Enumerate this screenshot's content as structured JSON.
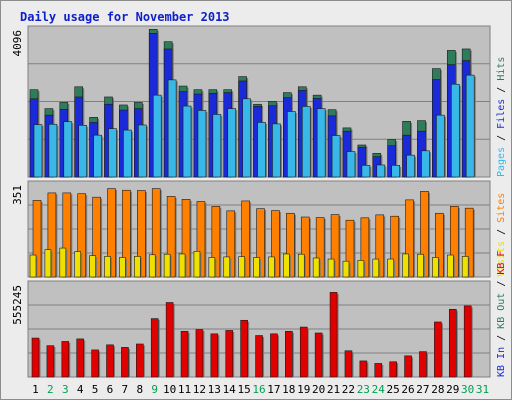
{
  "chart_data": {
    "type": "bar",
    "title": "Daily usage for November 2013",
    "categories": [
      "1",
      "2",
      "3",
      "4",
      "5",
      "6",
      "7",
      "8",
      "9",
      "10",
      "11",
      "12",
      "13",
      "14",
      "15",
      "16",
      "17",
      "18",
      "19",
      "20",
      "21",
      "22",
      "23",
      "24",
      "25",
      "26",
      "27",
      "28",
      "29",
      "30",
      "31"
    ],
    "weekend_days": [
      2,
      3,
      9,
      16,
      23,
      24,
      30,
      31
    ],
    "panels": [
      {
        "id": "top",
        "ylabel_parts": [
          {
            "text": "Pages",
            "color": "#38b8e8"
          },
          {
            "text": " / ",
            "color": "#000000"
          },
          {
            "text": "Files",
            "color": "#1a2ad8"
          },
          {
            "text": " / ",
            "color": "#000000"
          },
          {
            "text": "Hits",
            "color": "#2e7d5a"
          }
        ],
        "ymax_label": "4096",
        "ymax": 4096,
        "series": [
          {
            "name": "Hits",
            "color": "#2e7d5a",
            "values": [
              2400,
              1880,
              2050,
              2480,
              1640,
              2200,
              1980,
              2050,
              4060,
              3720,
              2500,
              2400,
              2400,
              2400,
              2760,
              2000,
              2080,
              2320,
              2480,
              2250,
              1850,
              1350,
              880,
              650,
              1030,
              1530,
              1550,
              2980,
              3480,
              3520,
              0
            ]
          },
          {
            "name": "Files",
            "color": "#1a2ad8",
            "values": [
              2150,
              1700,
              1860,
              2200,
              1500,
              2000,
              1840,
              1880,
              3950,
              3520,
              2350,
              2280,
              2300,
              2320,
              2640,
              1940,
              1960,
              2180,
              2380,
              2160,
              1680,
              1260,
              820,
              560,
              860,
              1150,
              1260,
              2680,
              3090,
              3200,
              0
            ]
          },
          {
            "name": "Pages",
            "color": "#38b8e8",
            "values": [
              1440,
              1450,
              1520,
              1420,
              1150,
              1330,
              1290,
              1430,
              2250,
              2670,
              1950,
              1830,
              1720,
              1880,
              2150,
              1500,
              1460,
              1800,
              1940,
              1880,
              1140,
              700,
              320,
              330,
              320,
              600,
              720,
              1700,
              2550,
              2800,
              0
            ]
          }
        ]
      },
      {
        "id": "middle",
        "ylabel_parts": [
          {
            "text": "Visits",
            "color": "#e8e000"
          },
          {
            "text": " / ",
            "color": "#000000"
          },
          {
            "text": "Sites",
            "color": "#ff8000"
          }
        ],
        "ymax_label": "351",
        "ymax": 351,
        "series": [
          {
            "name": "Sites",
            "color": "#ff8000",
            "values": [
              286,
              314,
              314,
              311,
              298,
              330,
              324,
              323,
              330,
              301,
              290,
              282,
              264,
              247,
              284,
              255,
              248,
              238,
              224,
              222,
              233,
              212,
              221,
              232,
              227,
              288,
              320,
              238,
              264,
              257,
              0
            ]
          },
          {
            "name": "Visits",
            "color": "#f0e000",
            "values": [
              82,
              102,
              108,
              95,
              80,
              77,
              73,
              77,
              83,
              85,
              86,
              96,
              73,
              75,
              76,
              73,
              75,
              86,
              85,
              71,
              67,
              59,
              62,
              67,
              67,
              86,
              85,
              73,
              82,
              77,
              0
            ]
          }
        ]
      },
      {
        "id": "bottom",
        "ylabel_parts": [
          {
            "text": "KB In",
            "color": "#1a2ad8"
          },
          {
            "text": " / ",
            "color": "#000000"
          },
          {
            "text": "KB Out",
            "color": "#2e7d5a"
          },
          {
            "text": " / ",
            "color": "#000000"
          },
          {
            "text": "KB F",
            "color": "#e00000"
          }
        ],
        "ymax_label": "555245",
        "ymax": 555245,
        "series": [
          {
            "name": "KB F",
            "color": "#e00000",
            "values": [
              230000,
              185000,
              210000,
              225000,
              160000,
              190000,
              175000,
              195000,
              345000,
              440000,
              270000,
              280000,
              255000,
              275000,
              335000,
              245000,
              255000,
              270000,
              295000,
              260000,
              500000,
              155000,
              95000,
              80000,
              90000,
              125000,
              150000,
              325000,
              400000,
              420000,
              0
            ]
          }
        ]
      }
    ]
  }
}
